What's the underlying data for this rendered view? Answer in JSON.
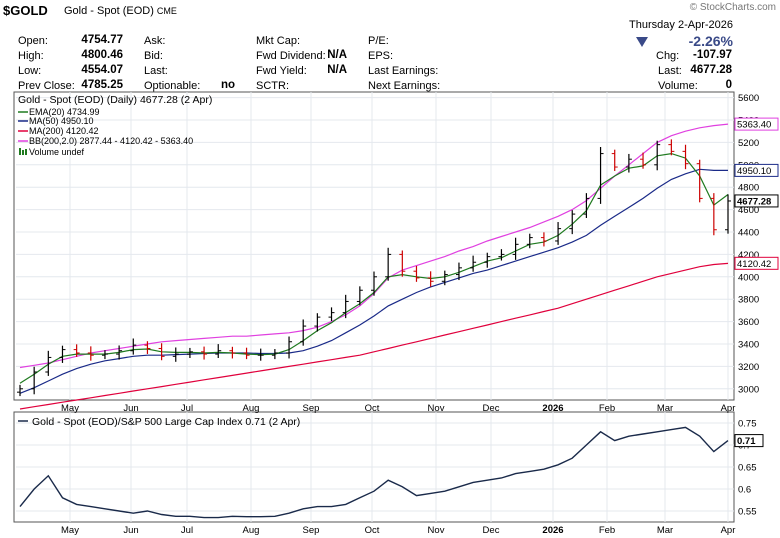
{
  "header": {
    "symbol": "$GOLD",
    "description": "Gold - Spot (EOD)",
    "exchange": "CME",
    "brand": "© StockCharts.com",
    "date": "Thursday  2-Apr-2026",
    "pct_change": "-2.26%",
    "chg_label": "Chg:",
    "chg_value": "-107.97",
    "last_label": "Last:",
    "last_value": "4677.28",
    "volume_label": "Volume:",
    "volume_value": "0",
    "col1": [
      {
        "label": "Open:",
        "value": "4754.77"
      },
      {
        "label": "High:",
        "value": "4800.46"
      },
      {
        "label": "Low:",
        "value": "4554.07"
      },
      {
        "label": "Prev Close:",
        "value": "4785.25"
      }
    ],
    "col2": [
      {
        "label": "Ask:",
        "value": ""
      },
      {
        "label": "Bid:",
        "value": ""
      },
      {
        "label": "Last:",
        "value": ""
      },
      {
        "label": "Optionable:",
        "value": "no"
      }
    ],
    "col3": [
      {
        "label": "Mkt Cap:",
        "value": ""
      },
      {
        "label": "Fwd Dividend:",
        "value": "N/A"
      },
      {
        "label": "Fwd Yield:",
        "value": "N/A"
      },
      {
        "label": "SCTR:",
        "value": ""
      }
    ],
    "col4": [
      {
        "label": "P/E:",
        "value": ""
      },
      {
        "label": "EPS:",
        "value": ""
      },
      {
        "label": "Last Earnings:",
        "value": ""
      },
      {
        "label": "Next Earnings:",
        "value": ""
      }
    ]
  },
  "legend": {
    "main": "Gold - Spot (EOD) (Daily) 4677.28 (2 Apr)",
    "ema20": "EMA(20) 4734.99",
    "ma50": "MA(50) 4950.10",
    "ma200": "MA(200) 4120.42",
    "bb": "BB(200,2.0) 2877.44 - 4120.42 - 5363.40",
    "volume": "Volume undef",
    "lower": "Gold - Spot (EOD)/S&P 500 Large Cap Index 0.71 (2 Apr)"
  },
  "colors": {
    "price_up": "#000000",
    "price_down": "#cc0000",
    "ema20": "#1f7a1f",
    "ma50": "#1a2a88",
    "ma200": "#e0003c",
    "bb": "#e040e0",
    "ratio": "#1a2a4a",
    "grid": "#e4e8ee"
  },
  "chart_data": [
    {
      "type": "line",
      "title": "Gold - Spot (EOD) (Daily) 4677.28 (2 Apr)",
      "x_axis_labels": [
        "May",
        "Jun",
        "Jul",
        "Aug",
        "Sep",
        "Oct",
        "Nov",
        "Dec",
        "2026",
        "Feb",
        "Mar",
        "Apr"
      ],
      "y_ticks": [
        3000,
        3200,
        3400,
        3600,
        3800,
        4000,
        4200,
        4400,
        4600,
        4800,
        5000,
        5200,
        5400,
        5600
      ],
      "ylim": [
        2900,
        5650
      ],
      "grid": true,
      "last_price_label": "4677.28",
      "value_labels": [
        "5363.40",
        "4950.10",
        "4677.28",
        "4120.42"
      ],
      "series": [
        {
          "name": "Gold - Spot (EOD)",
          "type": "ohlc",
          "dates": [
            "2025-04-14",
            "2025-04-21",
            "2025-04-28",
            "2025-05-05",
            "2025-05-12",
            "2025-05-19",
            "2025-05-26",
            "2025-06-02",
            "2025-06-09",
            "2025-06-16",
            "2025-06-23",
            "2025-06-30",
            "2025-07-07",
            "2025-07-14",
            "2025-07-21",
            "2025-07-28",
            "2025-08-04",
            "2025-08-11",
            "2025-08-18",
            "2025-08-25",
            "2025-09-01",
            "2025-09-08",
            "2025-09-15",
            "2025-09-22",
            "2025-09-29",
            "2025-10-06",
            "2025-10-13",
            "2025-10-20",
            "2025-10-27",
            "2025-11-03",
            "2025-11-10",
            "2025-11-17",
            "2025-11-24",
            "2025-12-01",
            "2025-12-08",
            "2025-12-15",
            "2025-12-22",
            "2025-12-29",
            "2026-01-05",
            "2026-01-12",
            "2026-01-19",
            "2026-01-26",
            "2026-02-02",
            "2026-02-09",
            "2026-02-16",
            "2026-02-23",
            "2026-03-02",
            "2026-03-09",
            "2026-03-16",
            "2026-03-23",
            "2026-03-30"
          ],
          "close": [
            3000,
            3150,
            3280,
            3350,
            3320,
            3300,
            3310,
            3340,
            3390,
            3360,
            3290,
            3310,
            3330,
            3310,
            3340,
            3320,
            3300,
            3300,
            3320,
            3420,
            3560,
            3640,
            3680,
            3780,
            3880,
            4000,
            4200,
            4050,
            3990,
            3960,
            4020,
            4080,
            4130,
            4180,
            4200,
            4290,
            4350,
            4320,
            4430,
            4560,
            4700,
            5100,
            4980,
            5050,
            5000,
            5180,
            5120,
            5010,
            4700,
            4420,
            4677
          ]
        },
        {
          "name": "EMA(20)",
          "values": [
            3050,
            3130,
            3220,
            3290,
            3310,
            3310,
            3310,
            3325,
            3350,
            3355,
            3330,
            3325,
            3325,
            3320,
            3325,
            3320,
            3310,
            3305,
            3310,
            3350,
            3430,
            3520,
            3590,
            3680,
            3760,
            3860,
            4000,
            4020,
            4000,
            3985,
            4000,
            4040,
            4090,
            4140,
            4170,
            4230,
            4290,
            4310,
            4370,
            4470,
            4590,
            4820,
            4900,
            4970,
            4990,
            5080,
            5100,
            5060,
            4900,
            4640,
            4735
          ]
        },
        {
          "name": "MA(50)",
          "values": [
            2960,
            3010,
            3070,
            3130,
            3180,
            3220,
            3250,
            3270,
            3290,
            3300,
            3300,
            3305,
            3310,
            3315,
            3320,
            3320,
            3320,
            3315,
            3315,
            3320,
            3340,
            3380,
            3430,
            3500,
            3570,
            3650,
            3740,
            3800,
            3860,
            3910,
            3950,
            3990,
            4030,
            4060,
            4100,
            4140,
            4180,
            4220,
            4260,
            4310,
            4370,
            4460,
            4540,
            4620,
            4700,
            4790,
            4870,
            4920,
            4960,
            4950,
            4950
          ]
        },
        {
          "name": "MA(200)",
          "values": [
            2820,
            2840,
            2860,
            2880,
            2900,
            2920,
            2940,
            2960,
            2980,
            3000,
            3020,
            3040,
            3060,
            3080,
            3100,
            3120,
            3140,
            3160,
            3180,
            3200,
            3220,
            3240,
            3260,
            3280,
            3300,
            3330,
            3360,
            3390,
            3420,
            3450,
            3480,
            3510,
            3540,
            3570,
            3600,
            3630,
            3660,
            3690,
            3720,
            3760,
            3800,
            3840,
            3880,
            3920,
            3960,
            4000,
            4030,
            4060,
            4090,
            4110,
            4120
          ]
        },
        {
          "name": "BB(200,2.0) upper",
          "values": [
            3190,
            3210,
            3230,
            3260,
            3290,
            3320,
            3340,
            3360,
            3380,
            3400,
            3420,
            3430,
            3440,
            3450,
            3460,
            3470,
            3470,
            3480,
            3490,
            3500,
            3520,
            3550,
            3600,
            3660,
            3740,
            3850,
            3990,
            4060,
            4100,
            4140,
            4180,
            4230,
            4270,
            4320,
            4360,
            4400,
            4440,
            4490,
            4540,
            4600,
            4680,
            4790,
            4900,
            5000,
            5100,
            5200,
            5260,
            5300,
            5330,
            5350,
            5363
          ]
        }
      ]
    },
    {
      "type": "line",
      "title": "Gold - Spot (EOD)/S&P 500 Large Cap Index 0.71 (2 Apr)",
      "x_axis_labels": [
        "May",
        "Jun",
        "Jul",
        "Aug",
        "Sep",
        "Oct",
        "Nov",
        "Dec",
        "2026",
        "Feb",
        "Mar",
        "Apr"
      ],
      "y_ticks": [
        0.55,
        0.6,
        0.65,
        0.7,
        0.75
      ],
      "ylim": [
        0.525,
        0.775
      ],
      "last_value_label": "0.71",
      "grid": true,
      "series": [
        {
          "name": "Gold - Spot (EOD)/S&P 500 Large Cap Index",
          "values": [
            0.56,
            0.6,
            0.63,
            0.58,
            0.565,
            0.56,
            0.555,
            0.55,
            0.545,
            0.55,
            0.542,
            0.538,
            0.538,
            0.535,
            0.535,
            0.538,
            0.537,
            0.537,
            0.538,
            0.545,
            0.555,
            0.56,
            0.56,
            0.565,
            0.58,
            0.595,
            0.62,
            0.605,
            0.585,
            0.59,
            0.595,
            0.605,
            0.615,
            0.62,
            0.625,
            0.635,
            0.64,
            0.645,
            0.655,
            0.67,
            0.7,
            0.73,
            0.71,
            0.72,
            0.725,
            0.73,
            0.735,
            0.74,
            0.72,
            0.685,
            0.71
          ]
        }
      ]
    }
  ]
}
